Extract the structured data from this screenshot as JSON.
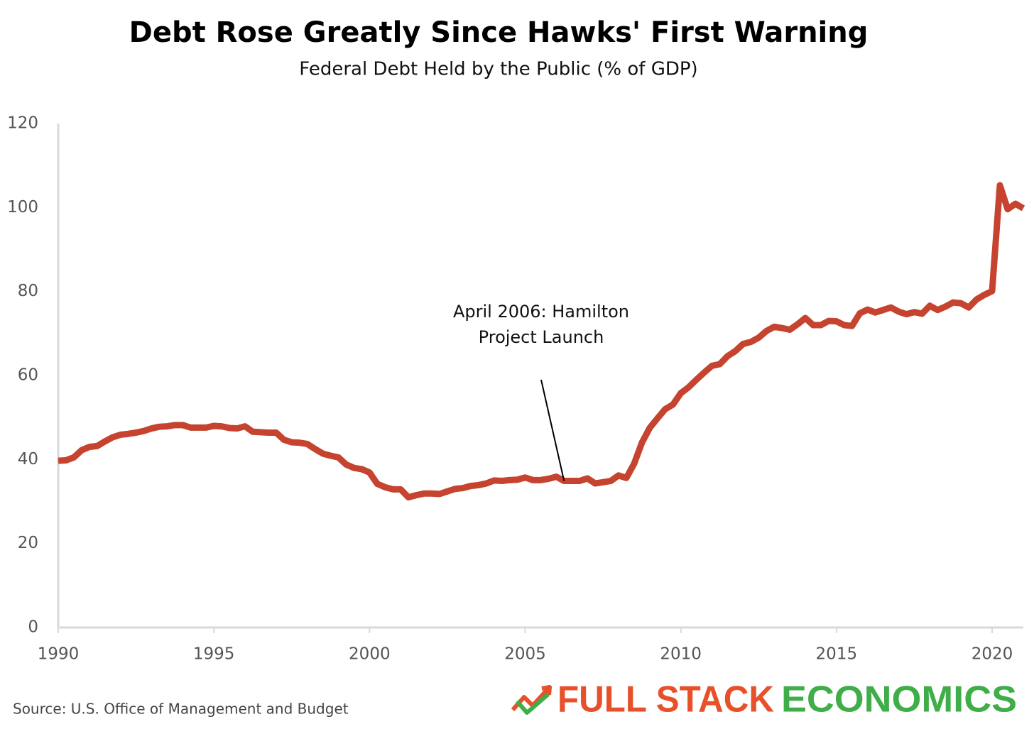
{
  "chart_data": {
    "type": "line",
    "title": "Debt Rose Greatly Since Hawks' First Warning",
    "subtitle": "Federal Debt Held by the Public (% of GDP)",
    "source": "Source: U.S. Office of Management and Budget",
    "brand": [
      "FULL STACK",
      "ECONOMICS"
    ],
    "annotation": {
      "text": [
        "April 2006: Hamilton",
        "Project Launch"
      ],
      "x": 2006.25,
      "y": 34.9
    },
    "x": [
      1990,
      1990.25,
      1990.5,
      1990.75,
      1991,
      1991.25,
      1991.5,
      1991.75,
      1992,
      1992.25,
      1992.5,
      1992.75,
      1993,
      1993.25,
      1993.5,
      1993.75,
      1994,
      1994.25,
      1994.5,
      1994.75,
      1995,
      1995.25,
      1995.5,
      1995.75,
      1996,
      1996.25,
      1996.5,
      1996.75,
      1997,
      1997.25,
      1997.5,
      1997.75,
      1998,
      1998.25,
      1998.5,
      1998.75,
      1999,
      1999.25,
      1999.5,
      1999.75,
      2000,
      2000.25,
      2000.5,
      2000.75,
      2001,
      2001.25,
      2001.5,
      2001.75,
      2002,
      2002.25,
      2002.5,
      2002.75,
      2003,
      2003.25,
      2003.5,
      2003.75,
      2004,
      2004.25,
      2004.5,
      2004.75,
      2005,
      2005.25,
      2005.5,
      2005.75,
      2006,
      2006.25,
      2006.5,
      2006.75,
      2007,
      2007.25,
      2007.5,
      2007.75,
      2008,
      2008.25,
      2008.5,
      2008.75,
      2009,
      2009.25,
      2009.5,
      2009.75,
      2010,
      2010.25,
      2010.5,
      2010.75,
      2011,
      2011.25,
      2011.5,
      2011.75,
      2012,
      2012.25,
      2012.5,
      2012.75,
      2013,
      2013.25,
      2013.5,
      2013.75,
      2014,
      2014.25,
      2014.5,
      2014.75,
      2015,
      2015.25,
      2015.5,
      2015.75,
      2016,
      2016.25,
      2016.5,
      2016.75,
      2017,
      2017.25,
      2017.5,
      2017.75,
      2018,
      2018.25,
      2018.5,
      2018.75,
      2019,
      2019.25,
      2019.5,
      2019.75,
      2020,
      2020.25,
      2020.5,
      2020.75,
      2021
    ],
    "series": [
      {
        "name": "Federal Debt Held by the Public",
        "color": "#c5432f",
        "values": [
          39.7,
          39.8,
          40.5,
          42.2,
          43,
          43.2,
          44.3,
          45.3,
          45.9,
          46.1,
          46.4,
          46.8,
          47.4,
          47.8,
          47.9,
          48.2,
          48.2,
          47.6,
          47.6,
          47.6,
          48,
          47.9,
          47.5,
          47.4,
          47.9,
          46.6,
          46.5,
          46.4,
          46.4,
          44.7,
          44.1,
          44,
          43.7,
          42.5,
          41.4,
          40.9,
          40.5,
          38.8,
          38,
          37.7,
          36.9,
          34.2,
          33.4,
          32.9,
          32.9,
          31,
          31.5,
          31.9,
          31.9,
          31.8,
          32.4,
          33,
          33.2,
          33.7,
          33.9,
          34.3,
          35,
          34.9,
          35.1,
          35.2,
          35.7,
          35.1,
          35.1,
          35.4,
          35.9,
          34.9,
          34.9,
          34.9,
          35.5,
          34.3,
          34.6,
          34.9,
          36.2,
          35.6,
          39,
          44,
          47.5,
          49.8,
          52,
          53.1,
          55.8,
          57.2,
          59,
          60.7,
          62.3,
          62.7,
          64.6,
          65.8,
          67.5,
          68,
          69,
          70.6,
          71.6,
          71.3,
          70.9,
          72.2,
          73.7,
          72,
          72,
          73,
          72.9,
          72,
          71.8,
          74.8,
          75.7,
          75,
          75.6,
          76.2,
          75.2,
          74.6,
          75.1,
          74.7,
          76.6,
          75.6,
          76.4,
          77.4,
          77.2,
          76.2,
          78.1,
          79.2,
          80.1,
          105.3,
          99.6,
          100.9,
          99.8
        ]
      }
    ],
    "xlim": [
      1990,
      2021
    ],
    "xticks": [
      1990,
      1995,
      2000,
      2005,
      2010,
      2015,
      2020
    ],
    "ylim": [
      0,
      120
    ],
    "yticks": [
      0,
      20,
      40,
      60,
      80,
      100,
      120
    ]
  }
}
